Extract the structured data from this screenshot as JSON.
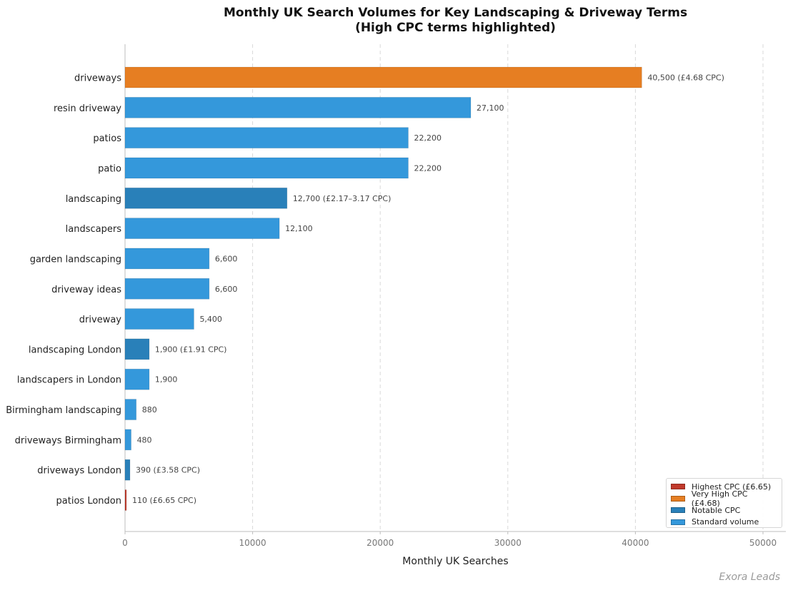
{
  "chart_data": {
    "type": "bar",
    "orientation": "horizontal",
    "title_line1": "Monthly UK Search Volumes for Key Landscaping & Driveway Terms",
    "title_line2": "(High CPC terms highlighted)",
    "xlabel": "Monthly UK Searches",
    "ylabel": "",
    "xlim": [
      0,
      50000
    ],
    "xticks": [
      0,
      10000,
      20000,
      30000,
      40000,
      50000
    ],
    "xtick_labels": [
      "0",
      "10000",
      "20000",
      "30000",
      "40000",
      "50000"
    ],
    "grid": "vertical dashed",
    "legend_position": "bottom-right",
    "colors": {
      "highest": "#c0392b",
      "very_high": "#e67e22",
      "notable": "#2980b9",
      "standard": "#3498db"
    },
    "legend": [
      {
        "label": "Highest CPC (£6.65)",
        "category": "highest"
      },
      {
        "label": "Very High CPC (£4.68)",
        "category": "very_high"
      },
      {
        "label": "Notable CPC",
        "category": "notable"
      },
      {
        "label": "Standard volume",
        "category": "standard"
      }
    ],
    "bars": [
      {
        "term": "driveways",
        "value": 40500,
        "label": "40,500  (£4.68 CPC)",
        "category": "very_high"
      },
      {
        "term": "resin driveway",
        "value": 27100,
        "label": "27,100",
        "category": "standard"
      },
      {
        "term": "patios",
        "value": 22200,
        "label": "22,200",
        "category": "standard"
      },
      {
        "term": "patio",
        "value": 22200,
        "label": "22,200",
        "category": "standard"
      },
      {
        "term": "landscaping",
        "value": 12700,
        "label": "12,700  (£2.17–3.17 CPC)",
        "category": "notable"
      },
      {
        "term": "landscapers",
        "value": 12100,
        "label": "12,100",
        "category": "standard"
      },
      {
        "term": "garden landscaping",
        "value": 6600,
        "label": "6,600",
        "category": "standard"
      },
      {
        "term": "driveway ideas",
        "value": 6600,
        "label": "6,600",
        "category": "standard"
      },
      {
        "term": "driveway",
        "value": 5400,
        "label": "5,400",
        "category": "standard"
      },
      {
        "term": "landscaping London",
        "value": 1900,
        "label": "1,900  (£1.91 CPC)",
        "category": "notable"
      },
      {
        "term": "landscapers in London",
        "value": 1900,
        "label": "1,900",
        "category": "standard"
      },
      {
        "term": "Birmingham landscaping",
        "value": 880,
        "label": "880",
        "category": "standard"
      },
      {
        "term": "driveways Birmingham",
        "value": 480,
        "label": "480",
        "category": "standard"
      },
      {
        "term": "driveways London",
        "value": 390,
        "label": "390  (£3.58 CPC)",
        "category": "notable"
      },
      {
        "term": "patios London",
        "value": 110,
        "label": "110  (£6.65 CPC)",
        "category": "highest"
      }
    ]
  },
  "watermark": "Exora Leads"
}
